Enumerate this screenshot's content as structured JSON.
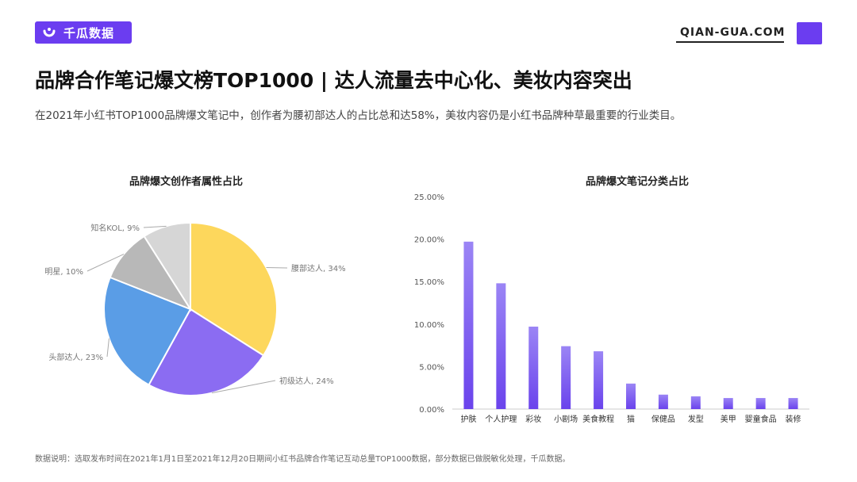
{
  "header": {
    "logo_text": "千瓜数据",
    "site": "QIAN-GUA.COM",
    "accent_color": "#6b3df0"
  },
  "title": "品牌合作笔记爆文榜TOP1000 | 达人流量去中心化、美妆内容突出",
  "subtitle": "在2021年小红书TOP1000品牌爆文笔记中，创作者为腰初部达人的占比总和达58%，美妆内容仍是小红书品牌种草最重要的行业类目。",
  "footnote": "数据说明：选取发布时间在2021年1月1日至2021年12月20日期间小红书品牌合作笔记互动总量TOP1000数据，部分数据已做脱敏化处理，千瓜数据。",
  "chart_data": [
    {
      "type": "pie",
      "title": "品牌爆文创作者属性占比",
      "slices": [
        {
          "label": "腰部达人, 34%",
          "value": 34,
          "color": "#fdd75c"
        },
        {
          "label": "初级达人, 24%",
          "value": 24,
          "color": "#8b6cf2"
        },
        {
          "label": "头部达人, 23%",
          "value": 23,
          "color": "#5a9de6"
        },
        {
          "label": "明星, 10%",
          "value": 10,
          "color": "#b8b8b8"
        },
        {
          "label": "知名KOL, 9%",
          "value": 9,
          "color": "#d6d6d6"
        }
      ]
    },
    {
      "type": "bar",
      "title": "品牌爆文笔记分类占比",
      "categories": [
        "护肤",
        "个人护理",
        "彩妆",
        "小剧场",
        "美食教程",
        "猫",
        "保健品",
        "发型",
        "美甲",
        "婴童食品",
        "装修"
      ],
      "values": [
        19.7,
        14.8,
        9.7,
        7.4,
        6.8,
        3.0,
        1.7,
        1.5,
        1.3,
        1.3,
        1.3
      ],
      "y_tick_labels": [
        "0.00%",
        "5.00%",
        "10.00%",
        "15.00%",
        "20.00%",
        "25.00%"
      ],
      "ylim": [
        0,
        25
      ],
      "grid": false,
      "bar_color_top": "#9b85f5",
      "bar_color_bottom": "#6a43ec"
    }
  ]
}
